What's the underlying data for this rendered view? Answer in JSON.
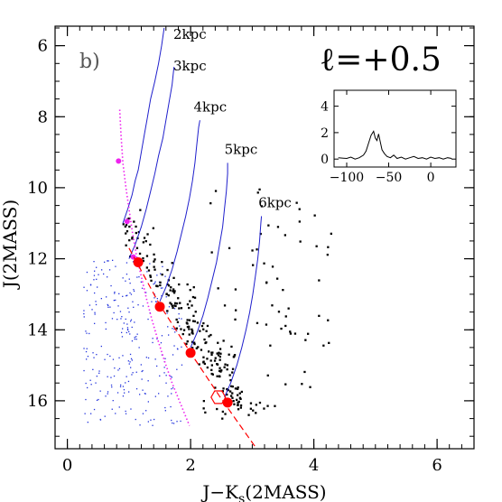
{
  "chart_data": {
    "type": "scatter",
    "panel_label": "b)",
    "corner_label": "ℓ=+0.5",
    "xlabel": "J−K",
    "xlabel_sub": "s",
    "xlabel_suffix": "(2MASS)",
    "ylabel": "J(2MASS)",
    "xlim": [
      -0.2,
      6.6
    ],
    "ylim": [
      17.35,
      5.45
    ],
    "y_inverted": true,
    "x_ticks": [
      0,
      2,
      4,
      6
    ],
    "y_ticks": [
      6,
      8,
      10,
      12,
      14,
      16
    ],
    "x_minor_step": 0.2,
    "y_minor_step": 0.5,
    "colors": {
      "isochrone": "#1f1fcc",
      "field_dots": "#2233dd",
      "stars": "#000000",
      "red_clump": "#ff0000",
      "dwarf_track": "#ee22ee",
      "reddening_line": "#ff0000"
    },
    "isochrones": [
      {
        "label": "2kpc",
        "label_at": [
          1.72,
          5.8
        ],
        "points": [
          [
            0.9,
            11.0
          ],
          [
            0.98,
            10.6
          ],
          [
            1.05,
            10.2
          ],
          [
            1.1,
            9.8
          ],
          [
            1.15,
            9.5
          ],
          [
            1.2,
            9.0
          ],
          [
            1.25,
            8.5
          ],
          [
            1.3,
            8.0
          ],
          [
            1.35,
            7.5
          ],
          [
            1.42,
            7.0
          ],
          [
            1.48,
            6.5
          ],
          [
            1.53,
            6.0
          ],
          [
            1.57,
            5.5
          ]
        ]
      },
      {
        "label": "3kpc",
        "label_at": [
          1.72,
          6.7
        ],
        "points": [
          [
            1.0,
            12.0
          ],
          [
            1.1,
            11.6
          ],
          [
            1.2,
            11.1
          ],
          [
            1.28,
            10.6
          ],
          [
            1.35,
            10.1
          ],
          [
            1.42,
            9.6
          ],
          [
            1.48,
            9.1
          ],
          [
            1.55,
            8.6
          ],
          [
            1.6,
            8.1
          ],
          [
            1.65,
            7.6
          ],
          [
            1.7,
            7.1
          ],
          [
            1.73,
            6.6
          ]
        ]
      },
      {
        "label": "4kpc",
        "label_at": [
          2.05,
          7.85
        ],
        "points": [
          [
            1.5,
            13.2
          ],
          [
            1.6,
            12.8
          ],
          [
            1.7,
            12.3
          ],
          [
            1.78,
            11.8
          ],
          [
            1.85,
            11.3
          ],
          [
            1.92,
            10.8
          ],
          [
            1.98,
            10.3
          ],
          [
            2.03,
            9.8
          ],
          [
            2.07,
            9.3
          ],
          [
            2.1,
            8.8
          ],
          [
            2.13,
            8.3
          ],
          [
            2.15,
            8.1
          ]
        ]
      },
      {
        "label": "5kpc",
        "label_at": [
          2.55,
          9.05
        ],
        "points": [
          [
            2.0,
            14.5
          ],
          [
            2.1,
            14.1
          ],
          [
            2.2,
            13.6
          ],
          [
            2.28,
            13.1
          ],
          [
            2.35,
            12.6
          ],
          [
            2.42,
            12.1
          ],
          [
            2.47,
            11.6
          ],
          [
            2.52,
            11.1
          ],
          [
            2.55,
            10.6
          ],
          [
            2.58,
            10.1
          ],
          [
            2.6,
            9.6
          ],
          [
            2.6,
            9.3
          ]
        ]
      },
      {
        "label": "6kpc",
        "label_at": [
          3.1,
          10.55
        ],
        "points": [
          [
            2.55,
            15.9
          ],
          [
            2.65,
            15.5
          ],
          [
            2.75,
            15.0
          ],
          [
            2.83,
            14.5
          ],
          [
            2.9,
            14.0
          ],
          [
            2.96,
            13.5
          ],
          [
            3.01,
            13.0
          ],
          [
            3.05,
            12.5
          ],
          [
            3.09,
            12.0
          ],
          [
            3.12,
            11.5
          ],
          [
            3.14,
            11.0
          ],
          [
            3.15,
            10.8
          ]
        ]
      }
    ],
    "red_clump_points": [
      [
        1.15,
        12.1
      ],
      [
        1.5,
        13.35
      ],
      [
        2.0,
        14.65
      ],
      [
        2.6,
        16.05
      ]
    ],
    "dwarf_track": [
      [
        0.85,
        7.8
      ],
      [
        0.87,
        8.5
      ],
      [
        0.9,
        9.3
      ],
      [
        0.95,
        10.0
      ],
      [
        1.0,
        10.6
      ],
      [
        1.05,
        11.2
      ],
      [
        1.12,
        11.9
      ],
      [
        1.2,
        12.5
      ],
      [
        1.28,
        13.1
      ],
      [
        1.37,
        13.7
      ],
      [
        1.47,
        14.3
      ],
      [
        1.58,
        14.9
      ],
      [
        1.7,
        15.5
      ],
      [
        1.84,
        16.1
      ],
      [
        1.98,
        16.7
      ]
    ],
    "dwarf_points": [
      [
        0.83,
        9.25
      ],
      [
        0.97,
        10.95
      ],
      [
        1.07,
        11.95
      ]
    ],
    "reddening_line": [
      [
        1.0,
        11.7
      ],
      [
        1.5,
        13.3
      ],
      [
        2.0,
        14.65
      ],
      [
        2.5,
        15.95
      ],
      [
        3.05,
        17.3
      ]
    ],
    "highlight_hexagon": [
      2.45,
      15.9
    ],
    "inset": {
      "xlim": [
        -115,
        30
      ],
      "ylim": [
        -0.6,
        5.2
      ],
      "x_ticks": [
        -100,
        -50,
        0
      ],
      "y_ticks": [
        0,
        2,
        4
      ],
      "spectrum": [
        [
          -110,
          0.1
        ],
        [
          -100,
          0.05
        ],
        [
          -95,
          0.15
        ],
        [
          -90,
          0.0
        ],
        [
          -85,
          0.1
        ],
        [
          -80,
          0.3
        ],
        [
          -77,
          0.6
        ],
        [
          -74,
          1.2
        ],
        [
          -71,
          1.8
        ],
        [
          -68,
          2.1
        ],
        [
          -66,
          1.6
        ],
        [
          -64,
          1.4
        ],
        [
          -62,
          1.9
        ],
        [
          -60,
          1.3
        ],
        [
          -58,
          0.7
        ],
        [
          -55,
          0.4
        ],
        [
          -52,
          0.2
        ],
        [
          -48,
          0.1
        ],
        [
          -44,
          0.3
        ],
        [
          -40,
          0.05
        ],
        [
          -35,
          0.15
        ],
        [
          -30,
          0.0
        ],
        [
          -25,
          0.1
        ],
        [
          -20,
          0.2
        ],
        [
          -15,
          0.05
        ],
        [
          -10,
          0.1
        ],
        [
          -5,
          0.0
        ],
        [
          0,
          0.15
        ],
        [
          5,
          0.05
        ],
        [
          10,
          0.1
        ],
        [
          15,
          0.0
        ],
        [
          20,
          0.1
        ],
        [
          25,
          0.05
        ]
      ]
    }
  }
}
